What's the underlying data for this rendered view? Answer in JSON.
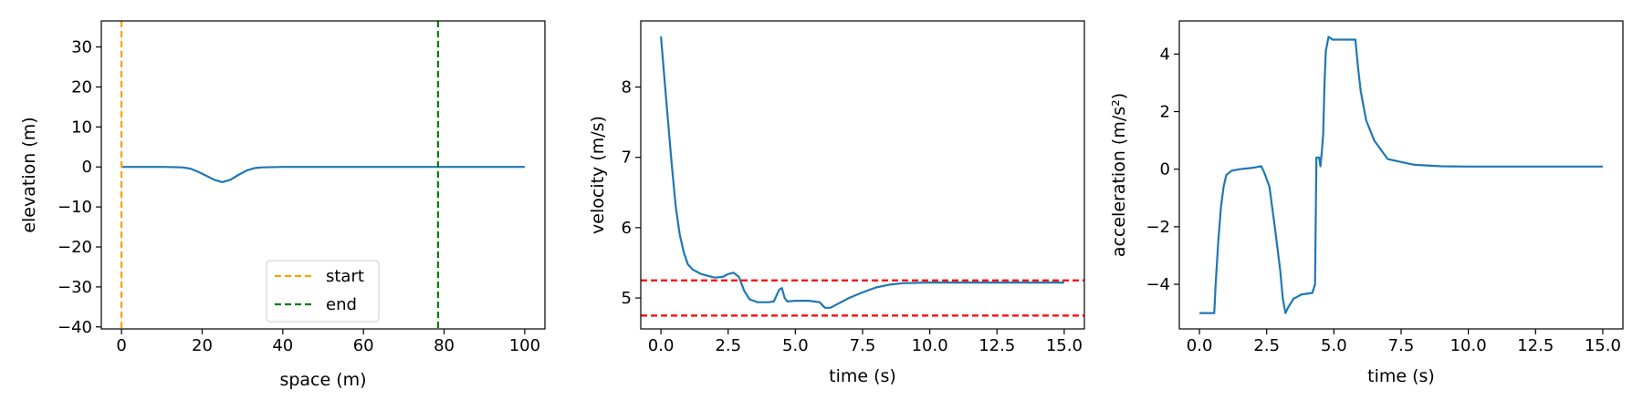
{
  "chart_data": [
    {
      "type": "line",
      "xlabel": "space (m)",
      "ylabel": "elevation (m)",
      "xlim": [
        -5,
        105
      ],
      "ylim": [
        -40.5,
        36.5
      ],
      "xticks": [
        0,
        20,
        40,
        60,
        80,
        100
      ],
      "yticks": [
        -40,
        -30,
        -20,
        -10,
        0,
        10,
        20,
        30
      ],
      "xtick_labels": [
        "0",
        "20",
        "40",
        "60",
        "80",
        "100"
      ],
      "ytick_labels": [
        "−40",
        "−30",
        "−20",
        "−10",
        "0",
        "10",
        "20",
        "30"
      ],
      "grid": false,
      "legend_position": "lower center",
      "series": [
        {
          "color": "#1f77b4",
          "style": "solid",
          "x": [
            0,
            10,
            15,
            17,
            19,
            21,
            23,
            25,
            27,
            29,
            31,
            33,
            35,
            40,
            60,
            80,
            100
          ],
          "y": [
            0,
            0,
            -0.1,
            -0.4,
            -1.2,
            -2.2,
            -3.2,
            -3.8,
            -3.2,
            -2.0,
            -0.9,
            -0.3,
            -0.1,
            0,
            0,
            0,
            0
          ]
        }
      ],
      "vlines": [
        {
          "x": 0,
          "color": "#ff9f00",
          "style": "dashed",
          "label": "start"
        },
        {
          "x": 78.5,
          "color": "#007f00",
          "style": "dashed",
          "label": "end"
        }
      ]
    },
    {
      "type": "line",
      "xlabel": "time (s)",
      "ylabel": "velocity (m/s)",
      "xlim": [
        -0.75,
        15.75
      ],
      "ylim": [
        4.56,
        8.94
      ],
      "xticks": [
        0,
        2.5,
        5,
        7.5,
        10,
        12.5,
        15
      ],
      "yticks": [
        5,
        6,
        7,
        8
      ],
      "xtick_labels": [
        "0.0",
        "2.5",
        "5.0",
        "7.5",
        "10.0",
        "12.5",
        "15.0"
      ],
      "ytick_labels": [
        "5",
        "6",
        "7",
        "8"
      ],
      "grid": false,
      "series": [
        {
          "color": "#1f77b4",
          "style": "solid",
          "x": [
            0,
            0.2,
            0.4,
            0.55,
            0.7,
            0.85,
            1.0,
            1.2,
            1.5,
            2.0,
            2.3,
            2.5,
            2.7,
            2.9,
            3.1,
            3.3,
            3.6,
            4.0,
            4.2,
            4.4,
            4.5,
            4.6,
            4.7,
            5.0,
            5.5,
            5.9,
            6.1,
            6.3,
            6.6,
            7.0,
            7.5,
            8.0,
            8.5,
            9.0,
            10.0,
            11.0,
            12.0,
            13.0,
            14.0,
            15.0
          ],
          "y": [
            8.72,
            7.8,
            6.9,
            6.3,
            5.9,
            5.65,
            5.48,
            5.4,
            5.34,
            5.29,
            5.3,
            5.34,
            5.36,
            5.3,
            5.1,
            4.98,
            4.94,
            4.94,
            4.95,
            5.12,
            5.14,
            5.0,
            4.95,
            4.96,
            4.96,
            4.94,
            4.86,
            4.86,
            4.92,
            5.0,
            5.08,
            5.15,
            5.19,
            5.21,
            5.22,
            5.22,
            5.22,
            5.22,
            5.22,
            5.22
          ]
        }
      ],
      "hlines": [
        {
          "y": 5.25,
          "color": "#ff0000",
          "style": "dashed"
        },
        {
          "y": 4.75,
          "color": "#ff0000",
          "style": "dashed"
        }
      ]
    },
    {
      "type": "line",
      "xlabel": "time (s)",
      "ylabel": "acceleration (m/s²)",
      "xlim": [
        -0.75,
        15.75
      ],
      "ylim": [
        -5.55,
        5.15
      ],
      "xticks": [
        0,
        2.5,
        5,
        7.5,
        10,
        12.5,
        15
      ],
      "yticks": [
        -4,
        -2,
        0,
        2,
        4
      ],
      "xtick_labels": [
        "0.0",
        "2.5",
        "5.0",
        "7.5",
        "10.0",
        "12.5",
        "15.0"
      ],
      "ytick_labels": [
        "−4",
        "−2",
        "0",
        "2",
        "4"
      ],
      "grid": false,
      "series": [
        {
          "color": "#1f77b4",
          "style": "solid",
          "x": [
            0,
            0.3,
            0.55,
            0.6,
            0.7,
            0.8,
            0.9,
            1.0,
            1.2,
            1.5,
            2.0,
            2.3,
            2.4,
            2.6,
            2.8,
            3.0,
            3.1,
            3.2,
            3.3,
            3.5,
            3.8,
            4.2,
            4.3,
            4.35,
            4.45,
            4.5,
            4.55,
            4.6,
            4.65,
            4.7,
            4.8,
            4.95,
            5.1,
            5.5,
            5.8,
            5.9,
            6.0,
            6.2,
            6.5,
            7.0,
            7.5,
            8.0,
            9.0,
            10.0,
            11.0,
            12.0,
            13.0,
            14.0,
            15.0
          ],
          "y": [
            -5.0,
            -5.0,
            -5.0,
            -4.0,
            -2.5,
            -1.3,
            -0.6,
            -0.2,
            -0.05,
            0.0,
            0.05,
            0.1,
            -0.1,
            -0.6,
            -2.0,
            -3.5,
            -4.5,
            -5.0,
            -4.8,
            -4.5,
            -4.35,
            -4.3,
            -4.0,
            0.4,
            0.4,
            0.1,
            0.6,
            1.2,
            3.0,
            4.1,
            4.6,
            4.5,
            4.5,
            4.5,
            4.5,
            3.5,
            2.7,
            1.7,
            1.0,
            0.35,
            0.25,
            0.15,
            0.1,
            0.09,
            0.09,
            0.09,
            0.09,
            0.09,
            0.09
          ]
        }
      ]
    }
  ]
}
